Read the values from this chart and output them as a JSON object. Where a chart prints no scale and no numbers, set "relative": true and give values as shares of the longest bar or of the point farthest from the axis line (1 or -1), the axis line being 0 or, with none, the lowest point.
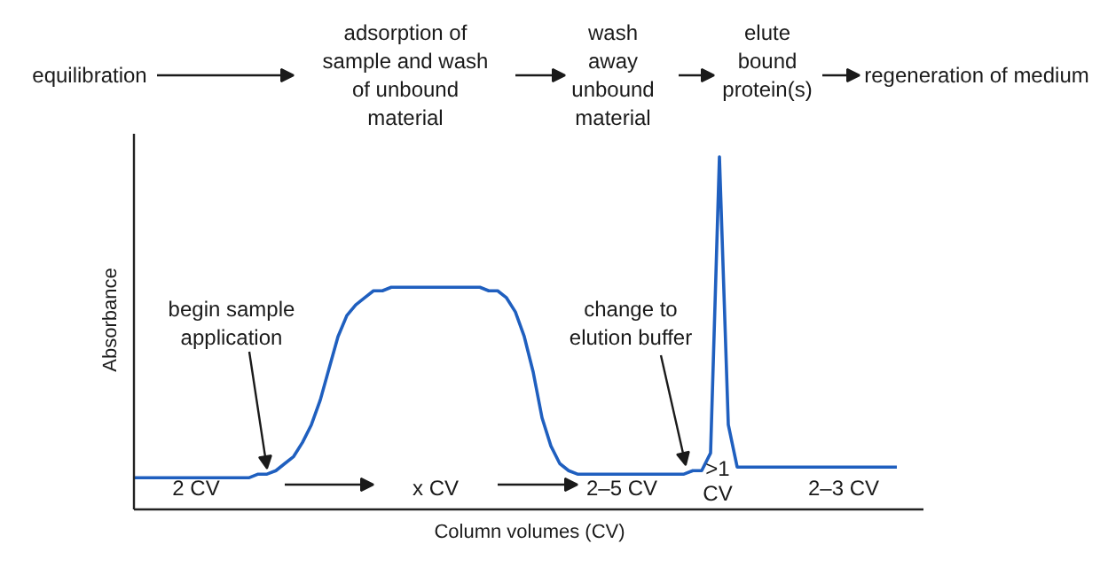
{
  "chart_data": {
    "type": "line",
    "relative": true,
    "xlabel": "Column volumes (CV)",
    "ylabel": "Absorbance",
    "color": "#1f5fbf",
    "categories": [
      null,
      null,
      null,
      null,
      null,
      null,
      null,
      null,
      null,
      null,
      null,
      null,
      null,
      null,
      null,
      null,
      null,
      null,
      null,
      null,
      null,
      null,
      null,
      null,
      null,
      null,
      null,
      null,
      null,
      null,
      null,
      null,
      null,
      null,
      null,
      null,
      null,
      null,
      null,
      null,
      null,
      null,
      null,
      null,
      null,
      null,
      null,
      null,
      null,
      null,
      null,
      null,
      null,
      null,
      null,
      null,
      null,
      null,
      null,
      null,
      null,
      null,
      null,
      null,
      null,
      null,
      null,
      null,
      null,
      null,
      null,
      null,
      null,
      null,
      null,
      null,
      null,
      null,
      null,
      null,
      null,
      null,
      null,
      null,
      null,
      null,
      null
    ],
    "values": [
      0.09,
      0.09,
      0.09,
      0.09,
      0.09,
      0.09,
      0.09,
      0.09,
      0.09,
      0.09,
      0.09,
      0.09,
      0.09,
      0.09,
      0.1,
      0.1,
      0.11,
      0.13,
      0.15,
      0.19,
      0.24,
      0.31,
      0.4,
      0.49,
      0.55,
      0.58,
      0.6,
      0.62,
      0.62,
      0.63,
      0.63,
      0.63,
      0.63,
      0.63,
      0.63,
      0.63,
      0.63,
      0.63,
      0.63,
      0.63,
      0.62,
      0.62,
      0.6,
      0.56,
      0.49,
      0.39,
      0.26,
      0.18,
      0.13,
      0.11,
      0.1,
      0.1,
      0.1,
      0.1,
      0.1,
      0.1,
      0.1,
      0.1,
      0.1,
      0.1,
      0.1,
      0.1,
      0.1,
      0.11,
      0.11,
      0.16,
      1,
      0.24,
      0.12,
      0.12,
      0.12,
      0.12,
      0.12,
      0.12,
      0.12,
      0.12,
      0.12,
      0.12,
      0.12,
      0.12,
      0.12,
      0.12,
      0.12,
      0.12,
      0.12,
      0.12,
      0.12
    ],
    "annotations": [
      "equilibration",
      "adsorption of sample and wash of unbound material",
      "wash away unbound material",
      "elute bound protein(s)",
      "regeneration of medium",
      "begin sample application",
      "change to elution buffer",
      "2 CV",
      "x CV",
      "2–5 CV",
      ">1 CV",
      "2–3 CV"
    ]
  }
}
